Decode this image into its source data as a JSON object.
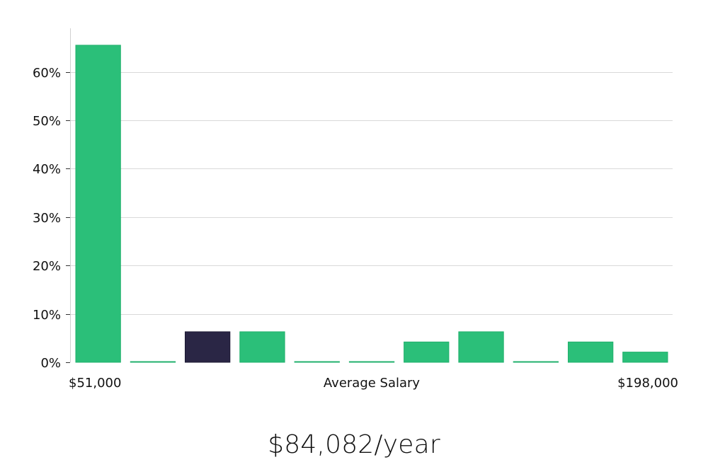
{
  "chart_data": {
    "type": "bar",
    "title": "",
    "xlabel": "Average Salary",
    "ylabel": "",
    "x_min_label": "$51,000",
    "x_max_label": "$198,000",
    "ylim": [
      0,
      69
    ],
    "y_ticks": [
      0,
      10,
      20,
      30,
      40,
      50,
      60
    ],
    "y_tick_labels": [
      "0%",
      "10%",
      "20%",
      "30%",
      "40%",
      "50%",
      "60%"
    ],
    "grid": true,
    "values": [
      65.5,
      0.1,
      6.3,
      6.3,
      0.1,
      0.1,
      4.2,
      6.3,
      0.1,
      4.2,
      2.1
    ],
    "highlight_index": 2,
    "bar_color": "#2bbf79",
    "highlight_color": "#2a2645"
  },
  "summary": {
    "value": "$84,082/year"
  }
}
